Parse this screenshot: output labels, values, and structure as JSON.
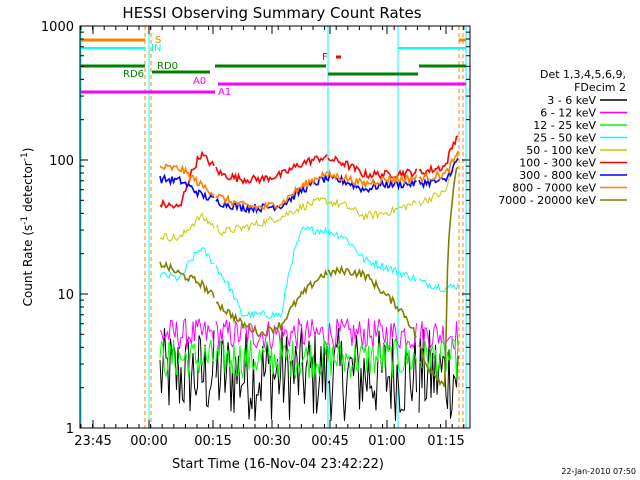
{
  "chart_data": {
    "type": "line",
    "title": "HESSI Observing Summary Count Rates",
    "xlabel": "Start Time (16-Nov-04 23:42:22)",
    "ylabel": "Count Rate (s",
    "ylabel_sup1": "-1",
    "ylabel_mid": " detector",
    "ylabel_sup2": "-1",
    "ylabel_end": ")",
    "yscale": "log",
    "ylim": [
      1,
      1000
    ],
    "x_ticks": [
      "23:45",
      "00:00",
      "00:15",
      "00:30",
      "00:45",
      "01:00",
      "01:15"
    ],
    "y_ticks": [
      "1",
      "10",
      "100",
      "1000"
    ],
    "legend_title": [
      "Det 1,3,4,5,6,9,",
      "FDecim 2"
    ],
    "legend_placement": "right",
    "timestamp": "22-Jan-2010 07:50",
    "series": [
      {
        "name": "3 - 6 keV",
        "color": "#000000",
        "baseline": 2.5,
        "spread": 0.35
      },
      {
        "name": "6 - 12 keV",
        "color": "#ff00ff",
        "baseline": 5,
        "spread": 0.12
      },
      {
        "name": "12 - 25 keV",
        "color": "#00ff00",
        "baseline": 3.3,
        "spread": 0.15
      },
      {
        "name": "25 - 50 keV",
        "color": "#00ffff",
        "baseline": 15,
        "profile": [
          14,
          13,
          22,
          14,
          7,
          7,
          7,
          30,
          30,
          27,
          18,
          16,
          14,
          12,
          11,
          12
        ]
      },
      {
        "name": "50 - 100 keV",
        "color": "#c8c800",
        "baseline": 27,
        "profile": [
          27,
          26,
          38,
          29,
          31,
          34,
          38,
          45,
          50,
          46,
          38,
          40,
          45,
          50,
          58,
          140
        ]
      },
      {
        "name": "100 - 300 keV",
        "color": "#ff0000",
        "baseline": 45,
        "profile": [
          47,
          44,
          110,
          78,
          72,
          72,
          78,
          95,
          105,
          95,
          78,
          78,
          80,
          82,
          90,
          200
        ]
      },
      {
        "name": "300 - 800 keV",
        "color": "#0000ff",
        "baseline": 70,
        "profile": [
          72,
          70,
          55,
          48,
          44,
          44,
          46,
          60,
          72,
          70,
          60,
          66,
          66,
          68,
          70,
          120
        ]
      },
      {
        "name": "800 - 7000 keV",
        "color": "#ff8000",
        "baseline": 88,
        "profile": [
          88,
          86,
          65,
          52,
          46,
          44,
          48,
          64,
          78,
          74,
          66,
          72,
          72,
          74,
          78,
          130
        ]
      },
      {
        "name": "7000 - 20000 keV",
        "color": "#808000",
        "baseline": 12,
        "profile": [
          17,
          14,
          12,
          8,
          6,
          5,
          6,
          10,
          14,
          15,
          14,
          10,
          7,
          3,
          2,
          150
        ]
      }
    ],
    "flag_labels": [
      "S",
      "IN",
      "F",
      "RD0",
      "RD6",
      "A0",
      "A1"
    ],
    "flag_colors": {
      "saa": "#ff8000",
      "night": "#00ffff",
      "flare": "#ff0000",
      "decimation": "#008000",
      "attenuator": "#ff00ff"
    }
  }
}
